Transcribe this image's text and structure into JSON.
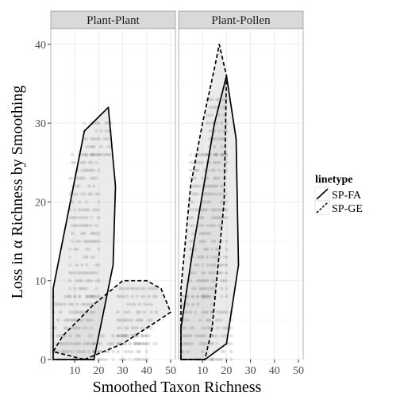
{
  "chart_data": {
    "type": "scatter",
    "facets": [
      {
        "label": "Plant-Plant",
        "hulls": [
          {
            "name": "SP-FA",
            "dash": "solid",
            "points": [
              [
                1,
                0
              ],
              [
                1,
                9
              ],
              [
                14,
                29
              ],
              [
                24,
                32
              ],
              [
                27,
                22
              ],
              [
                26,
                12
              ],
              [
                18,
                0
              ]
            ]
          },
          {
            "name": "SP-GE",
            "dash": "dashed",
            "points": [
              [
                14,
                0
              ],
              [
                30,
                2
              ],
              [
                45,
                5
              ],
              [
                50,
                6
              ],
              [
                46,
                9
              ],
              [
                40,
                10
              ],
              [
                30,
                10
              ],
              [
                18,
                7
              ],
              [
                5,
                3
              ],
              [
                1,
                1
              ]
            ]
          }
        ],
        "dot_columns": [
          {
            "from": 1,
            "to": 18,
            "ymin": 0,
            "ymax": 8
          },
          {
            "from": 8,
            "to": 20,
            "ymin": 8,
            "ymax": 26
          },
          {
            "from": 14,
            "to": 25,
            "ymin": 26,
            "ymax": 30
          },
          {
            "from": 18,
            "to": 40,
            "ymin": 0,
            "ymax": 3
          },
          {
            "from": 28,
            "to": 44,
            "ymin": 2,
            "ymax": 9
          }
        ]
      },
      {
        "label": "Plant-Pollen",
        "hulls": [
          {
            "name": "SP-FA",
            "dash": "solid",
            "points": [
              [
                1,
                0
              ],
              [
                11,
                0
              ],
              [
                20,
                2
              ],
              [
                25,
                12
              ],
              [
                24,
                28
              ],
              [
                20,
                36
              ],
              [
                15,
                30
              ],
              [
                6,
                14
              ],
              [
                1,
                4
              ]
            ]
          },
          {
            "name": "SP-GE",
            "dash": "dashed",
            "points": [
              [
                1,
                0
              ],
              [
                1,
                9
              ],
              [
                5,
                22
              ],
              [
                10,
                30
              ],
              [
                15,
                37
              ],
              [
                17,
                40
              ],
              [
                20,
                36
              ],
              [
                19,
                20
              ],
              [
                14,
                4
              ],
              [
                11,
                0
              ]
            ]
          }
        ],
        "dot_columns": [
          {
            "from": 1,
            "to": 14,
            "ymin": 0,
            "ymax": 8
          },
          {
            "from": 5,
            "to": 20,
            "ymin": 8,
            "ymax": 26
          },
          {
            "from": 12,
            "to": 20,
            "ymin": 26,
            "ymax": 33
          },
          {
            "from": 14,
            "to": 22,
            "ymin": 0,
            "ymax": 6
          }
        ]
      }
    ],
    "x_ticks": [
      10,
      20,
      30,
      40,
      50
    ],
    "y_ticks": [
      0,
      10,
      20,
      30,
      40
    ],
    "xlim": [
      0,
      52
    ],
    "ylim": [
      0,
      42
    ],
    "xlabel": "Smoothed Taxon Richness",
    "ylabel": "Loss in α Richness by Smoothing",
    "legend": {
      "title": "linetype",
      "position": "right",
      "entries": [
        {
          "label": "SP-FA",
          "dash": "solid"
        },
        {
          "label": "SP-GE",
          "dash": "dashed"
        }
      ]
    },
    "grid": true
  },
  "colors": {
    "panel_bg": "#ffffff",
    "grid": "#ebebeb",
    "strip_bg": "#d9d9d9",
    "hull_fill": "#cccccc",
    "dots": "#555555"
  }
}
